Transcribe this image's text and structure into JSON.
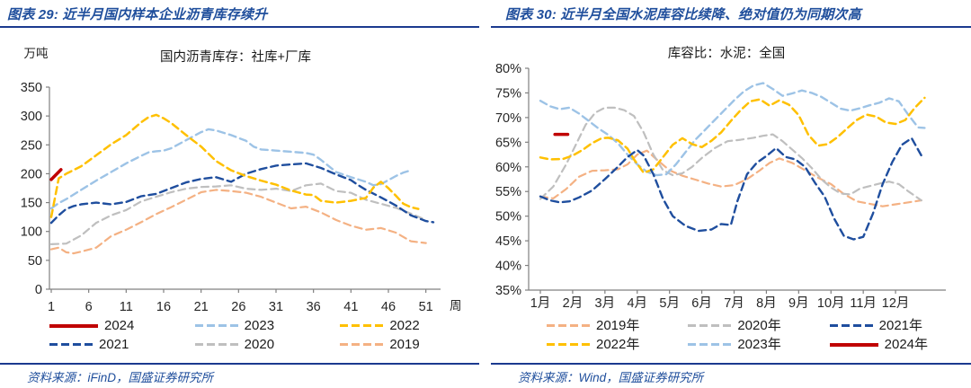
{
  "colors": {
    "caption_blue": "#1F4E9C",
    "rule_blue": "#1B3A8F",
    "axis_gray": "#808080",
    "tick_text": "#262626",
    "red_2024": "#C00000",
    "lightblue_2023": "#9DC3E6",
    "yellow_2022": "#FFC000",
    "navy_2021": "#1F4E9E",
    "gray_2020": "#BFBFBF",
    "salmon_2019": "#F4B183"
  },
  "panels": [
    {
      "caption": "图表 29:  近半月国内样本企业沥青库存续升",
      "source": "资料来源：iFinD，国盛证券研究所",
      "legend_rows": [
        [
          {
            "label": "2024",
            "color": "#C00000",
            "solid": true
          },
          {
            "label": "2023",
            "color": "#9DC3E6",
            "solid": false
          },
          {
            "label": "2022",
            "color": "#FFC000",
            "solid": false
          }
        ],
        [
          {
            "label": "2021",
            "color": "#1F4E9E",
            "solid": false
          },
          {
            "label": "2020",
            "color": "#BFBFBF",
            "solid": false
          },
          {
            "label": "2019",
            "color": "#F4B183",
            "solid": false
          }
        ]
      ]
    },
    {
      "caption": "图表 30:  近半月全国水泥库容比续降、绝对值仍为同期次高",
      "source": "资料来源：Wind，国盛证券研究所",
      "legend_rows": [
        [
          {
            "label": "2019年",
            "color": "#F4B183",
            "solid": false
          },
          {
            "label": "2020年",
            "color": "#BFBFBF",
            "solid": false
          },
          {
            "label": "2021年",
            "color": "#1F4E9E",
            "solid": false
          }
        ],
        [
          {
            "label": "2022年",
            "color": "#FFC000",
            "solid": false
          },
          {
            "label": "2023年",
            "color": "#9DC3E6",
            "solid": false
          },
          {
            "label": "2024年",
            "color": "#C00000",
            "solid": true
          }
        ]
      ]
    }
  ],
  "chart_data": [
    {
      "type": "line",
      "title": "国内沥青库存：社库+厂库",
      "y_unit": "万吨",
      "x_label": "周",
      "ylim": [
        0,
        350
      ],
      "y_step": 50,
      "y_format": "plain",
      "xlim": [
        1,
        52
      ],
      "x_ticks": [
        {
          "v": 1,
          "label": "1"
        },
        {
          "v": 6,
          "label": "6"
        },
        {
          "v": 11,
          "label": "11"
        },
        {
          "v": 16,
          "label": "16"
        },
        {
          "v": 21,
          "label": "21"
        },
        {
          "v": 26,
          "label": "26"
        },
        {
          "v": 31,
          "label": "31"
        },
        {
          "v": 36,
          "label": "36"
        },
        {
          "v": 41,
          "label": "41"
        },
        {
          "v": 46,
          "label": "46"
        },
        {
          "v": 51,
          "label": "51"
        }
      ],
      "series": [
        {
          "name": "2019",
          "color": "#F4B183",
          "dash": true,
          "width": 2.2,
          "x": [
            1,
            2,
            3,
            4,
            5,
            7,
            9,
            11,
            13,
            15,
            17,
            19,
            21,
            23,
            25,
            27,
            29,
            31,
            33,
            35,
            37,
            39,
            41,
            43,
            45,
            47,
            49,
            51
          ],
          "y": [
            69,
            72,
            64,
            62,
            65,
            72,
            92,
            103,
            116,
            130,
            142,
            155,
            168,
            172,
            170,
            167,
            160,
            150,
            140,
            143,
            133,
            120,
            110,
            103,
            106,
            98,
            83,
            80
          ]
        },
        {
          "name": "2020",
          "color": "#BFBFBF",
          "dash": true,
          "width": 2.2,
          "x": [
            1,
            3,
            5,
            7,
            9,
            11,
            13,
            15,
            17,
            19,
            21,
            23,
            25,
            27,
            29,
            31,
            33,
            35,
            37,
            39,
            41,
            43,
            45,
            47,
            49,
            51
          ],
          "y": [
            78,
            79,
            93,
            115,
            128,
            137,
            152,
            160,
            168,
            174,
            177,
            178,
            180,
            174,
            172,
            174,
            170,
            180,
            183,
            170,
            167,
            155,
            148,
            141,
            131,
            120
          ]
        },
        {
          "name": "2023",
          "color": "#9DC3E6",
          "dash": true,
          "width": 2.4,
          "x": [
            1,
            2,
            3,
            5,
            7,
            9,
            11,
            13,
            14,
            15,
            16,
            17,
            19,
            21,
            22,
            23,
            25,
            27,
            28,
            29,
            31,
            33,
            35,
            36,
            37,
            39,
            41,
            43,
            44,
            45,
            46,
            47,
            48,
            49
          ],
          "y": [
            140,
            149,
            156,
            172,
            188,
            203,
            218,
            231,
            237,
            239,
            240,
            244,
            258,
            272,
            277,
            275,
            267,
            257,
            247,
            242,
            240,
            238,
            236,
            233,
            224,
            203,
            194,
            186,
            180,
            182,
            189,
            196,
            202,
            206
          ]
        },
        {
          "name": "2021",
          "color": "#1F4E9E",
          "dash": true,
          "width": 2.4,
          "x": [
            1,
            2,
            3,
            4,
            5,
            7,
            9,
            11,
            13,
            15,
            17,
            19,
            21,
            23,
            25,
            27,
            29,
            31,
            33,
            35,
            37,
            39,
            41,
            42,
            43,
            45,
            47,
            49,
            51,
            52
          ],
          "y": [
            115,
            128,
            139,
            144,
            147,
            150,
            147,
            151,
            161,
            165,
            175,
            185,
            191,
            194,
            186,
            200,
            208,
            214,
            216,
            218,
            210,
            199,
            189,
            180,
            172,
            159,
            145,
            128,
            118,
            116
          ]
        },
        {
          "name": "2022",
          "color": "#FFC000",
          "dash": true,
          "width": 2.5,
          "x": [
            1,
            2,
            3,
            5,
            7,
            9,
            11,
            13,
            14,
            15,
            16,
            17,
            19,
            21,
            23,
            25,
            27,
            29,
            31,
            33,
            35,
            36,
            37,
            39,
            41,
            43,
            44,
            45,
            46,
            47,
            48,
            49,
            50
          ],
          "y": [
            125,
            192,
            200,
            213,
            232,
            251,
            267,
            289,
            298,
            302,
            296,
            288,
            267,
            247,
            222,
            206,
            196,
            188,
            181,
            171,
            164,
            163,
            153,
            150,
            153,
            158,
            176,
            186,
            175,
            162,
            148,
            142,
            139
          ]
        },
        {
          "name": "2024",
          "color": "#C00000",
          "dash": false,
          "width": 3.5,
          "x": [
            1,
            2.3
          ],
          "y": [
            190,
            207
          ]
        }
      ]
    },
    {
      "type": "line",
      "title": "库容比：水泥：全国",
      "y_unit": "",
      "x_label": "",
      "ylim": [
        35,
        80
      ],
      "y_step": 5,
      "y_format": "percent",
      "xlim": [
        1,
        13
      ],
      "x_ticks": [
        {
          "v": 1,
          "label": "1月"
        },
        {
          "v": 2,
          "label": "2月"
        },
        {
          "v": 3,
          "label": "3月"
        },
        {
          "v": 4,
          "label": "4月"
        },
        {
          "v": 5,
          "label": "5月"
        },
        {
          "v": 6,
          "label": "6月"
        },
        {
          "v": 7,
          "label": "7月"
        },
        {
          "v": 8,
          "label": "8月"
        },
        {
          "v": 9,
          "label": "9月"
        },
        {
          "v": 10,
          "label": "10月"
        },
        {
          "v": 11,
          "label": "11月"
        },
        {
          "v": 12,
          "label": "12月"
        }
      ],
      "series": [
        {
          "name": "2019年",
          "color": "#F4B183",
          "dash": true,
          "width": 2.2,
          "x": [
            1,
            1.4,
            1.8,
            2.2,
            2.6,
            3,
            3.4,
            3.7,
            4,
            4.3,
            4.6,
            5,
            5.4,
            5.8,
            6.2,
            6.6,
            7,
            7.4,
            7.8,
            8.1,
            8.4,
            8.8,
            9.2,
            9.6,
            10,
            10.4,
            10.8,
            11.2,
            11.6,
            12,
            12.4,
            12.8
          ],
          "y": [
            54,
            53.6,
            55.5,
            58,
            59.2,
            59.3,
            59.5,
            60.5,
            62.5,
            63.3,
            61.5,
            59.3,
            58.2,
            57.4,
            56.6,
            56,
            56.3,
            57.5,
            59.3,
            60.8,
            61.7,
            60.8,
            59.3,
            57.8,
            56.5,
            54.5,
            53,
            52.5,
            52,
            52.4,
            52.8,
            53.2
          ]
        },
        {
          "name": "2020年",
          "color": "#BFBFBF",
          "dash": true,
          "width": 2.2,
          "x": [
            1,
            1.4,
            1.8,
            2.1,
            2.4,
            2.7,
            3,
            3.3,
            3.6,
            3.9,
            4.2,
            4.5,
            4.8,
            5.1,
            5.4,
            5.7,
            6,
            6.4,
            6.8,
            7.2,
            7.6,
            7.9,
            8.2,
            8.5,
            8.8,
            9.1,
            9.4,
            9.7,
            10,
            10.3,
            10.6,
            10.9,
            11.2,
            11.5,
            11.8,
            12.1,
            12.4,
            12.8
          ],
          "y": [
            53.5,
            56,
            60.5,
            64.5,
            68.5,
            71,
            72,
            72,
            71.5,
            70.3,
            67,
            62.5,
            59.3,
            58.3,
            58.7,
            60,
            61.8,
            63.8,
            65.2,
            65.5,
            65.9,
            66.3,
            66.6,
            65.2,
            63.5,
            61.8,
            59.8,
            57.5,
            55.8,
            54.6,
            54.4,
            55.6,
            56.1,
            56.6,
            57,
            56.5,
            55,
            53.2
          ]
        },
        {
          "name": "2023年",
          "color": "#9DC3E6",
          "dash": true,
          "width": 2.4,
          "x": [
            1,
            1.3,
            1.6,
            1.9,
            2.2,
            2.5,
            2.8,
            3.1,
            3.4,
            3.7,
            4,
            4.3,
            4.6,
            4.9,
            5.2,
            5.5,
            5.8,
            6.1,
            6.4,
            6.7,
            7,
            7.3,
            7.6,
            7.9,
            8.2,
            8.5,
            8.8,
            9.1,
            9.4,
            9.7,
            10,
            10.3,
            10.6,
            10.9,
            11.2,
            11.5,
            11.8,
            12.1,
            12.4,
            12.7,
            12.9
          ],
          "y": [
            73.4,
            72.3,
            71.7,
            72,
            70.8,
            69.3,
            67.8,
            66.5,
            64.8,
            62.5,
            60.5,
            59,
            58.3,
            58.5,
            60.5,
            63,
            65.5,
            67.5,
            69.5,
            71.5,
            73.5,
            75.3,
            76.5,
            77,
            75.8,
            74.4,
            74.9,
            75.5,
            75,
            74.2,
            73,
            71.8,
            71.4,
            71.9,
            72.5,
            73,
            73.9,
            73.3,
            70.5,
            68,
            67.9
          ]
        },
        {
          "name": "2022年",
          "color": "#FFC000",
          "dash": true,
          "width": 2.5,
          "x": [
            1,
            1.3,
            1.7,
            2,
            2.3,
            2.6,
            2.9,
            3.1,
            3.4,
            3.7,
            3.9,
            4.2,
            4.5,
            4.8,
            5.1,
            5.4,
            5.7,
            6,
            6.3,
            6.6,
            6.9,
            7.2,
            7.5,
            7.8,
            8.1,
            8.4,
            8.7,
            9,
            9.3,
            9.6,
            9.9,
            10.2,
            10.5,
            10.8,
            11.1,
            11.4,
            11.7,
            12,
            12.3,
            12.6,
            12.9
          ],
          "y": [
            61.9,
            61.5,
            61.6,
            62.3,
            63.4,
            64.8,
            65.8,
            65.9,
            65.4,
            63.7,
            61.5,
            58.8,
            59.5,
            62,
            64.5,
            65.8,
            64.6,
            64,
            65.3,
            67,
            69.3,
            71.5,
            73.3,
            73.7,
            72.4,
            73.5,
            72.6,
            70.5,
            66.5,
            64.3,
            64.6,
            66,
            67.8,
            69.5,
            70.6,
            70.2,
            69,
            68.7,
            69.5,
            72,
            74
          ]
        },
        {
          "name": "2021年",
          "color": "#1F4E9E",
          "dash": true,
          "width": 2.4,
          "x": [
            1,
            1.3,
            1.6,
            1.9,
            2.2,
            2.6,
            3,
            3.4,
            3.7,
            4,
            4.2,
            4.5,
            4.8,
            5.1,
            5.5,
            5.9,
            6.3,
            6.6,
            6.9,
            7.1,
            7.4,
            7.7,
            8,
            8.3,
            8.6,
            8.9,
            9.2,
            9.5,
            9.8,
            10.1,
            10.4,
            10.7,
            11,
            11.3,
            11.6,
            11.9,
            12.2,
            12.5,
            12.8
          ],
          "y": [
            54,
            53.2,
            52.8,
            53,
            53.8,
            55.2,
            57.5,
            60,
            62,
            63.4,
            62.3,
            58.5,
            53.5,
            50,
            48,
            47,
            47.3,
            48.4,
            48.2,
            53,
            58.5,
            60.8,
            62.2,
            63.8,
            62,
            61.5,
            60,
            56.8,
            54,
            49.5,
            46,
            45.3,
            45.8,
            50.5,
            56.5,
            61,
            64.5,
            65.8,
            62.3
          ]
        },
        {
          "name": "2024年",
          "color": "#C00000",
          "dash": false,
          "width": 3.5,
          "x": [
            1.45,
            1.85
          ],
          "y": [
            66.6,
            66.6
          ]
        }
      ]
    }
  ]
}
